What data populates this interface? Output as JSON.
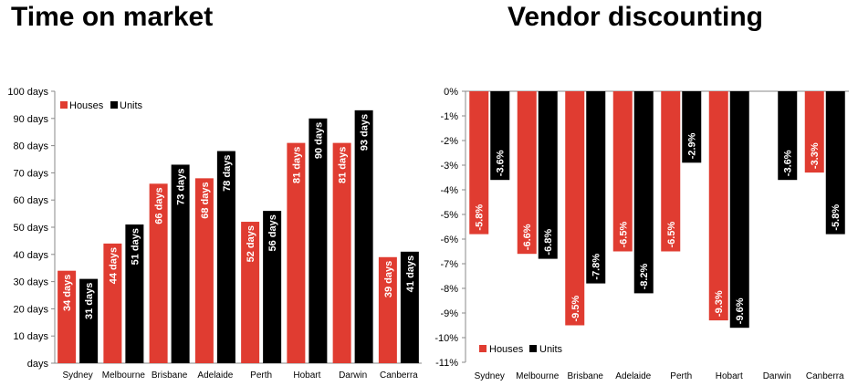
{
  "chart_data": [
    {
      "type": "bar",
      "title": "Time on market",
      "categories": [
        "Sydney",
        "Melbourne",
        "Brisbane",
        "Adelaide",
        "Perth",
        "Hobart",
        "Darwin",
        "Canberra"
      ],
      "series": [
        {
          "name": "Houses",
          "color": "#e03c31",
          "values": [
            34,
            44,
            66,
            68,
            52,
            81,
            81,
            39
          ],
          "labels": [
            "34 days",
            "44 days",
            "66 days",
            "68 days",
            "52 days",
            "81 days",
            "81 days",
            "39 days"
          ]
        },
        {
          "name": "Units",
          "color": "#000000",
          "values": [
            31,
            51,
            73,
            78,
            56,
            90,
            93,
            41
          ],
          "labels": [
            "31 days",
            "51 days",
            "73 days",
            "78 days",
            "56 days",
            "90 days",
            "93 days",
            "41 days"
          ]
        }
      ],
      "ylim": [
        0,
        100
      ],
      "yticks": [
        0,
        10,
        20,
        30,
        40,
        50,
        60,
        70,
        80,
        90,
        100
      ],
      "ytick_labels": [
        "days",
        "10 days",
        "20 days",
        "30 days",
        "40 days",
        "50 days",
        "60 days",
        "70 days",
        "80 days",
        "90 days",
        "100 days"
      ],
      "grid": false,
      "legend": "top-left"
    },
    {
      "type": "bar",
      "title": "Vendor discounting",
      "categories": [
        "Sydney",
        "Melbourne",
        "Brisbane",
        "Adelaide",
        "Perth",
        "Hobart",
        "Darwin",
        "Canberra"
      ],
      "series": [
        {
          "name": "Houses",
          "color": "#e03c31",
          "values": [
            -5.8,
            -6.6,
            -9.5,
            -6.5,
            -6.5,
            -9.3,
            null,
            -3.3
          ],
          "labels": [
            "-5.8%",
            "-6.6%",
            "-9.5%",
            "-6.5%",
            "-6.5%",
            "-9.3%",
            "",
            "-3.3%"
          ]
        },
        {
          "name": "Units",
          "color": "#000000",
          "values": [
            -3.6,
            -6.8,
            -7.8,
            -8.2,
            -2.9,
            -9.6,
            -3.6,
            -5.8
          ],
          "labels": [
            "-3.6%",
            "-6.8%",
            "-7.8%",
            "-8.2%",
            "-2.9%",
            "-9.6%",
            "-3.6%",
            "-5.8%"
          ]
        }
      ],
      "ylim": [
        -11,
        0
      ],
      "yticks": [
        0,
        -1,
        -2,
        -3,
        -4,
        -5,
        -6,
        -7,
        -8,
        -9,
        -10,
        -11
      ],
      "ytick_labels": [
        "0%",
        "-1%",
        "-2%",
        "-3%",
        "-4%",
        "-5%",
        "-6%",
        "-7%",
        "-8%",
        "-9%",
        "-10%",
        "-11%"
      ],
      "grid": false,
      "legend": "bottom-left"
    }
  ]
}
